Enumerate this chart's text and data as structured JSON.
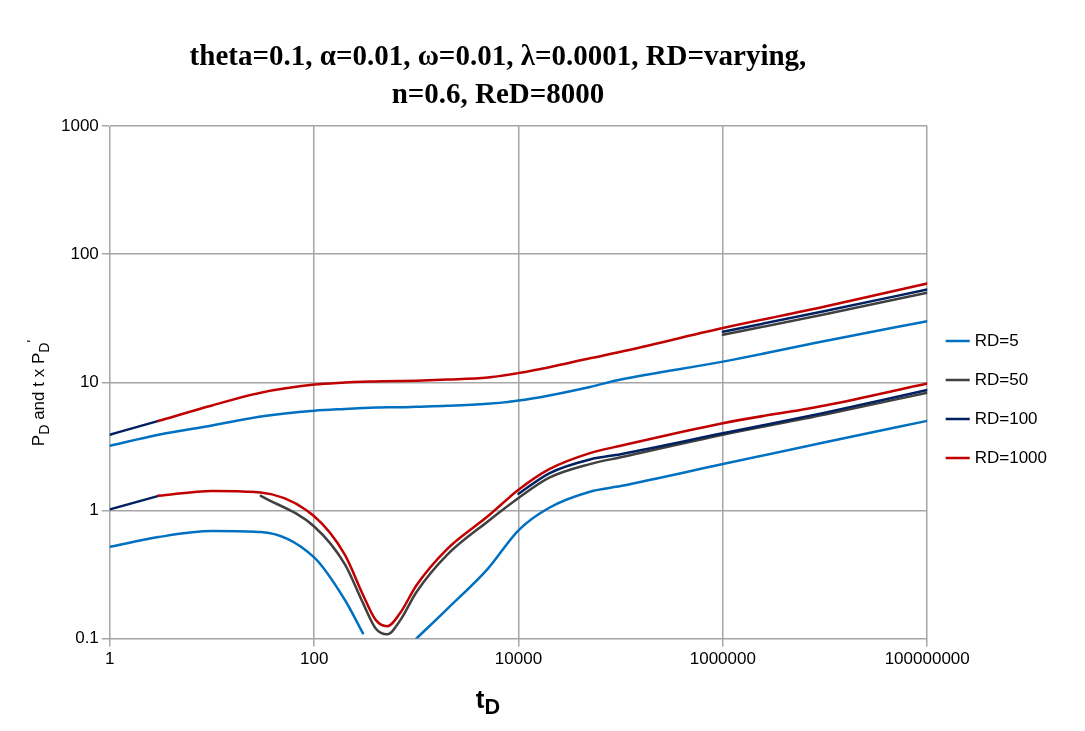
{
  "chart_data": {
    "type": "line",
    "title": "theta=0.1, α=0.01, ω=0.01, λ=0.0001, RD=varying, n=0.6, ReD=8000",
    "xlabel": "t$_{D}$",
    "ylabel": "P$_{D}$ and t x P$_{D}$$^{'}$",
    "x": [
      1,
      3,
      10,
      30,
      100,
      200,
      300,
      400,
      520,
      700,
      1000,
      2000,
      5000,
      10000,
      20000,
      50000,
      100000,
      1000000,
      10000000,
      100000000
    ],
    "log": "xy",
    "xlim": [
      1,
      100000000
    ],
    "xticks": [
      1,
      100,
      10000,
      1000000,
      100000000
    ],
    "ylim": [
      0.1,
      1000
    ],
    "yticks": [
      0.1,
      1,
      10,
      100,
      1000
    ],
    "grid": true,
    "legend": "right",
    "marker": "none",
    "line_style": "solid",
    "series": [
      {
        "name": "RD=5",
        "color": "#0070c0",
        "values": [
          3.2,
          3.9,
          4.6,
          5.4,
          6.0,
          6.2,
          6.3,
          6.35,
          6.4,
          6.4,
          6.45,
          6.55,
          6.8,
          7.2,
          7.9,
          9.2,
          10.5,
          14.5,
          21,
          30
        ]
      },
      {
        "color": "#0070c0",
        "values": [
          0.52,
          0.62,
          0.69,
          0.68,
          0.43,
          0.2,
          0.11,
          null,
          null,
          null,
          0.1,
          0.17,
          0.35,
          0.7,
          1.05,
          1.4,
          1.55,
          2.3,
          3.4,
          5.0
        ]
      },
      {
        "name": "RD=50",
        "color": "#404040",
        "values": [
          null,
          null,
          null,
          null,
          null,
          null,
          null,
          null,
          null,
          null,
          null,
          null,
          null,
          null,
          null,
          null,
          null,
          23.5,
          34,
          50
        ]
      },
      {
        "color": "#404040",
        "values": [
          null,
          null,
          null,
          1.3,
          0.75,
          0.38,
          0.19,
          0.12,
          0.108,
          0.14,
          0.23,
          0.45,
          0.82,
          1.25,
          1.8,
          2.3,
          2.6,
          3.9,
          5.6,
          8.3
        ]
      },
      {
        "name": "RD=100",
        "color": "#002060",
        "values": [
          3.9,
          5.0,
          null,
          null,
          null,
          null,
          null,
          null,
          null,
          null,
          null,
          null,
          null,
          null,
          null,
          null,
          null,
          24.8,
          36,
          53
        ]
      },
      {
        "color": "#002060",
        "values": [
          1.02,
          1.3,
          null,
          null,
          null,
          null,
          null,
          null,
          null,
          null,
          null,
          null,
          null,
          1.35,
          1.95,
          2.5,
          2.75,
          4.0,
          5.8,
          8.7
        ]
      },
      {
        "name": "RD=1000",
        "color": "#c00000",
        "values": [
          null,
          5.0,
          6.6,
          8.3,
          9.6,
          9.95,
          10.1,
          10.15,
          10.2,
          10.25,
          10.3,
          10.5,
          10.9,
          11.8,
          13.1,
          15.4,
          17.3,
          26.5,
          39,
          59
        ]
      },
      {
        "color": "#c00000",
        "values": [
          null,
          1.3,
          1.42,
          1.38,
          0.9,
          0.45,
          0.22,
          0.14,
          0.125,
          0.16,
          0.26,
          0.5,
          0.9,
          1.45,
          2.1,
          2.8,
          3.2,
          4.8,
          6.6,
          9.8
        ]
      }
    ]
  }
}
